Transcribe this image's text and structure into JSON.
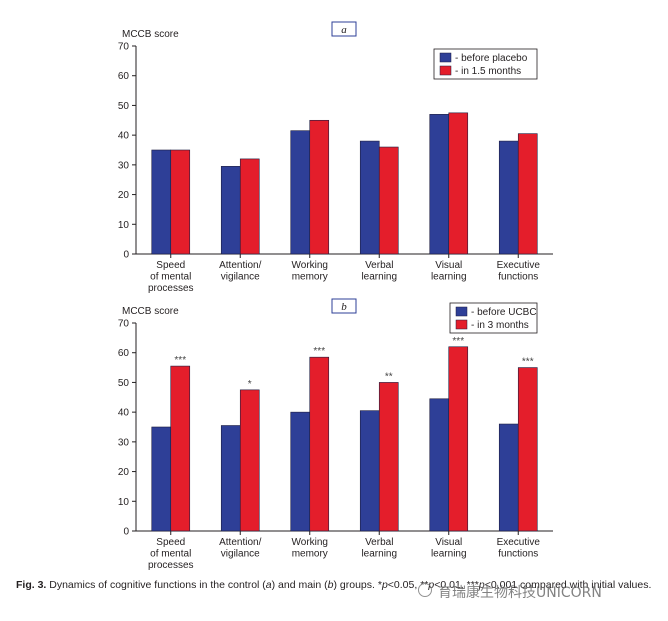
{
  "chart_data": [
    {
      "type": "bar",
      "panel_label": "a",
      "ylabel": "MCCB score",
      "ylim": [
        0,
        70
      ],
      "yticks": [
        0,
        10,
        20,
        30,
        40,
        50,
        60,
        70
      ],
      "categories": [
        [
          "Speed",
          "of mental",
          "processes"
        ],
        [
          "Attention/",
          "vigilance"
        ],
        [
          "Working",
          "memory"
        ],
        [
          "Verbal",
          "learning"
        ],
        [
          "Visual",
          "learning"
        ],
        [
          "Executive",
          "functions"
        ]
      ],
      "series": [
        {
          "name": "- before placebo",
          "color": "#2e3f97",
          "values": [
            35,
            29.5,
            41.5,
            38,
            47,
            38
          ]
        },
        {
          "name": "- in 1.5 months",
          "color": "#e41e2b",
          "values": [
            35,
            32,
            45,
            36,
            47.5,
            40.5
          ]
        }
      ],
      "annotations": [
        "",
        "",
        "",
        "",
        "",
        ""
      ],
      "legend": "top-right"
    },
    {
      "type": "bar",
      "panel_label": "b",
      "ylabel": "MCCB score",
      "ylim": [
        0,
        70
      ],
      "yticks": [
        0,
        10,
        20,
        30,
        40,
        50,
        60,
        70
      ],
      "categories": [
        [
          "Speed",
          "of mental",
          "processes"
        ],
        [
          "Attention/",
          "vigilance"
        ],
        [
          "Working",
          "memory"
        ],
        [
          "Verbal",
          "learning"
        ],
        [
          "Visual",
          "learning"
        ],
        [
          "Executive",
          "functions"
        ]
      ],
      "series": [
        {
          "name": "- before UCBC",
          "color": "#2e3f97",
          "values": [
            35,
            35.5,
            40,
            40.5,
            44.5,
            36
          ]
        },
        {
          "name": "- in 3 months",
          "color": "#e41e2b",
          "values": [
            55.5,
            47.5,
            58.5,
            50,
            62,
            55
          ]
        }
      ],
      "annotations": [
        "***",
        "*",
        "***",
        "**",
        "***",
        "***"
      ],
      "legend": "top-right"
    }
  ],
  "caption": {
    "fig_label": "Fig. 3.",
    "text_1": " Dynamics of cognitive functions in the control (",
    "a": "a",
    "text_2": ") and main (",
    "b": "b",
    "text_3": ") groups. *",
    "p1": "p",
    "text_4": "<0.05, **",
    "p2": "p",
    "text_5": "<0.01, ***",
    "p3": "p",
    "text_6": "<0.001 compared with initial values."
  },
  "watermark": "育瑞康生物科技UNICORN"
}
